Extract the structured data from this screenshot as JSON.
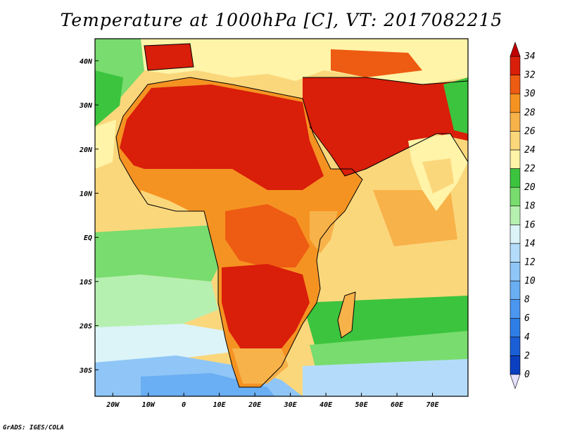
{
  "title": "Temperature at 1000hPa [C], VT: 2017082215",
  "credit": "GrADS: IGES/COLA",
  "map": {
    "variable": "Temperature at 1000hPa",
    "units": "C",
    "lon_range": [
      -25,
      80
    ],
    "lat_range": [
      -36,
      45
    ],
    "lat_ticks": [
      {
        "label": "40N",
        "value": 40
      },
      {
        "label": "30N",
        "value": 30
      },
      {
        "label": "20N",
        "value": 20
      },
      {
        "label": "10N",
        "value": 10
      },
      {
        "label": "EQ",
        "value": 0
      },
      {
        "label": "10S",
        "value": -10
      },
      {
        "label": "20S",
        "value": -20
      },
      {
        "label": "30S",
        "value": -30
      }
    ],
    "lon_ticks": [
      {
        "label": "20W",
        "value": -20
      },
      {
        "label": "10W",
        "value": -10
      },
      {
        "label": "0",
        "value": 0
      },
      {
        "label": "10E",
        "value": 10
      },
      {
        "label": "20E",
        "value": 20
      },
      {
        "label": "30E",
        "value": 30
      },
      {
        "label": "40E",
        "value": 40
      },
      {
        "label": "50E",
        "value": 50
      },
      {
        "label": "60E",
        "value": 60
      },
      {
        "label": "70E",
        "value": 70
      }
    ]
  },
  "colorbar": {
    "levels": [
      {
        "label": "0",
        "value": 0,
        "color": "#000080"
      },
      {
        "label": "2",
        "value": 2,
        "color": "#0a3fbf"
      },
      {
        "label": "4",
        "value": 4,
        "color": "#1b5fd6"
      },
      {
        "label": "6",
        "value": 6,
        "color": "#2f7ee6"
      },
      {
        "label": "8",
        "value": 8,
        "color": "#4b96ee"
      },
      {
        "label": "10",
        "value": 10,
        "color": "#6aaef3"
      },
      {
        "label": "12",
        "value": 12,
        "color": "#8fc6f7"
      },
      {
        "label": "14",
        "value": 14,
        "color": "#b4dcfa"
      },
      {
        "label": "16",
        "value": 16,
        "color": "#dcf4f8"
      },
      {
        "label": "18",
        "value": 18,
        "color": "#b6f0b0"
      },
      {
        "label": "20",
        "value": 20,
        "color": "#78dc6e"
      },
      {
        "label": "22",
        "value": 22,
        "color": "#3cc43e"
      },
      {
        "label": "24",
        "value": 24,
        "color": "#fff4a8"
      },
      {
        "label": "26",
        "value": 26,
        "color": "#fbd77c"
      },
      {
        "label": "28",
        "value": 28,
        "color": "#f7b24a"
      },
      {
        "label": "30",
        "value": 30,
        "color": "#f59322"
      },
      {
        "label": "32",
        "value": 32,
        "color": "#ee5b12"
      },
      {
        "label": "34",
        "value": 34,
        "color": "#d91e0a"
      }
    ],
    "under_color": "#e6e0ff",
    "over_color": "#c00000"
  }
}
